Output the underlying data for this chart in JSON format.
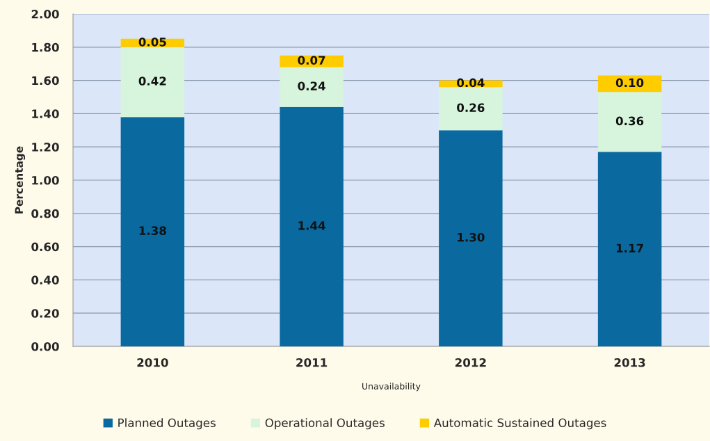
{
  "chart_data": {
    "type": "bar",
    "stacked": true,
    "ylabel": "Percentage",
    "xlabel": "Unavailability",
    "categories": [
      "2010",
      "2011",
      "2012",
      "2013"
    ],
    "series": [
      {
        "name": "Planned Outages",
        "color": "#0a6aa0",
        "values": [
          1.38,
          1.44,
          1.3,
          1.17
        ],
        "value_labels": [
          "1.38",
          "1.44",
          "1.30",
          "1.17"
        ]
      },
      {
        "name": "Operational Outages",
        "color": "#d6f5dc",
        "values": [
          0.42,
          0.24,
          0.26,
          0.36
        ],
        "value_labels": [
          "0.42",
          "0.24",
          "0.26",
          "0.36"
        ]
      },
      {
        "name": "Automatic Sustained Outages",
        "color": "#ffcc00",
        "values": [
          0.05,
          0.07,
          0.04,
          0.1
        ],
        "value_labels": [
          "0.05",
          "0.07",
          "0.04",
          "0.10"
        ]
      }
    ],
    "ylim": [
      0,
      2
    ],
    "yticks": [
      {
        "value": 0,
        "label": "0.00"
      },
      {
        "value": 0.2,
        "label": "0.20"
      },
      {
        "value": 0.4,
        "label": "0.40"
      },
      {
        "value": 0.6,
        "label": "0.60"
      },
      {
        "value": 0.8,
        "label": "0.80"
      },
      {
        "value": 1,
        "label": "1.00"
      },
      {
        "value": 1.2,
        "label": "1.20"
      },
      {
        "value": 1.4,
        "label": "1.40"
      },
      {
        "value": 1.6,
        "label": "1.60"
      },
      {
        "value": 1.8,
        "label": "1.80"
      },
      {
        "value": 2,
        "label": "2.00"
      }
    ],
    "grid": "y",
    "legend": "bottom"
  }
}
